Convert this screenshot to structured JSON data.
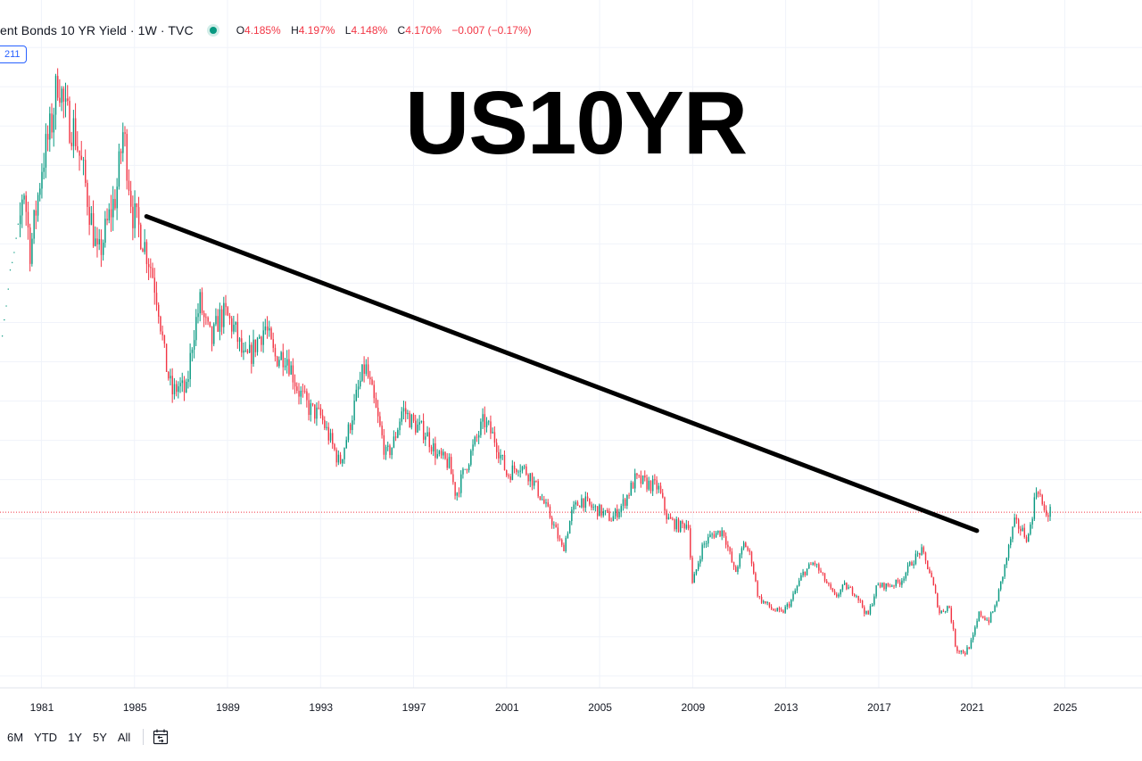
{
  "header": {
    "title": "ent Bonds 10 YR Yield · 1W · TVC",
    "ohlc": [
      {
        "label": "O",
        "value": "4.185%"
      },
      {
        "label": "H",
        "value": "4.197%"
      },
      {
        "label": "L",
        "value": "4.148%"
      },
      {
        "label": "C",
        "value": "4.170%"
      }
    ],
    "change": "−0.007 (−0.17%)",
    "status_color": "#089981"
  },
  "badge": "211",
  "overlay_title": "US10YR",
  "toolbar": {
    "ranges": [
      "6M",
      "YTD",
      "1Y",
      "5Y",
      "All"
    ],
    "goto_icon": "calendar-goto-icon"
  },
  "colors": {
    "up": "#089981",
    "down": "#f23645",
    "trendline": "#000000",
    "last_price_line": "#f23645"
  },
  "chart_data": {
    "type": "line",
    "title": "US10YR",
    "xlabel": "",
    "ylabel": "",
    "x_ticks": [
      "1981",
      "1985",
      "1989",
      "1993",
      "1997",
      "2001",
      "2005",
      "2009",
      "2013",
      "2017",
      "2021",
      "2025"
    ],
    "xlim": [
      1979.2,
      2028.3
    ],
    "ylim": [
      -0.3,
      16.3
    ],
    "grid": true,
    "last_value": 4.17,
    "series": [
      {
        "x": [
          1979.3,
          1979.8,
          1980.0,
          1980.2,
          1980.5,
          1980.8,
          1981.0,
          1981.4,
          1981.7,
          1982.0,
          1982.4,
          1982.9,
          1983.4,
          1983.9,
          1984.2,
          1984.5,
          1984.9,
          1985.3,
          1985.7,
          1986.0,
          1986.3,
          1986.6,
          1986.9,
          1987.2,
          1987.5,
          1987.8,
          1988.0,
          1988.3,
          1988.6,
          1988.9,
          1989.3,
          1989.7,
          1990.0,
          1990.3,
          1990.6,
          1991.0,
          1991.5,
          1992.0,
          1992.5,
          1993.0,
          1993.4,
          1993.8,
          1994.2,
          1994.6,
          1994.9,
          1995.3,
          1995.8,
          1996.1,
          1996.5,
          1997.0,
          1997.5,
          1998.0,
          1998.5,
          1998.8,
          1999.2,
          1999.6,
          2000.0,
          2000.5,
          2001.0,
          2001.5,
          2002.0,
          2002.5,
          2002.9,
          2003.4,
          2003.8,
          2004.2,
          2004.6,
          2005.0,
          2005.5,
          2006.0,
          2006.5,
          2007.0,
          2007.5,
          2007.9,
          2008.4,
          2008.8,
          2008.95,
          2009.4,
          2009.8,
          2010.3,
          2010.8,
          2011.2,
          2011.5,
          2011.8,
          2012.4,
          2012.8,
          2013.2,
          2013.7,
          2014.2,
          2014.7,
          2015.1,
          2015.5,
          2016.0,
          2016.5,
          2016.9,
          2017.4,
          2017.9,
          2018.4,
          2018.8,
          2019.2,
          2019.6,
          2020.0,
          2020.3,
          2020.7,
          2021.0,
          2021.3,
          2021.7,
          2022.0,
          2022.4,
          2022.8,
          2023.0,
          2023.4,
          2023.8,
          2024.1,
          2024.4
        ],
        "y": [
          9.0,
          10.6,
          11.2,
          12.6,
          10.8,
          12.1,
          13.0,
          14.0,
          15.3,
          14.3,
          13.9,
          12.4,
          10.6,
          11.7,
          12.3,
          13.9,
          11.8,
          11.2,
          10.4,
          9.5,
          8.0,
          7.2,
          7.4,
          7.2,
          8.7,
          9.5,
          9.0,
          8.5,
          9.1,
          9.2,
          8.8,
          8.0,
          8.2,
          8.6,
          8.9,
          8.1,
          8.2,
          7.3,
          6.8,
          6.6,
          6.0,
          5.4,
          6.3,
          7.3,
          7.9,
          6.9,
          5.6,
          5.9,
          6.8,
          6.4,
          6.2,
          5.6,
          5.4,
          4.6,
          5.3,
          5.9,
          6.5,
          6.0,
          5.1,
          5.4,
          5.1,
          4.5,
          4.0,
          3.2,
          4.2,
          4.5,
          4.3,
          4.2,
          4.0,
          4.4,
          5.0,
          4.9,
          4.8,
          4.0,
          3.8,
          3.9,
          2.3,
          3.3,
          3.6,
          3.7,
          2.6,
          3.4,
          3.0,
          2.0,
          1.7,
          1.6,
          1.9,
          2.6,
          2.9,
          2.4,
          2.0,
          2.3,
          2.1,
          1.5,
          2.3,
          2.3,
          2.4,
          2.9,
          3.2,
          2.6,
          1.6,
          1.8,
          0.7,
          0.6,
          0.9,
          1.6,
          1.4,
          1.8,
          2.8,
          3.9,
          3.8,
          3.5,
          4.9,
          4.1,
          4.2
        ]
      }
    ],
    "trendline": {
      "x": [
        1985.5,
        2021.2
      ],
      "y": [
        11.7,
        3.7
      ]
    }
  }
}
